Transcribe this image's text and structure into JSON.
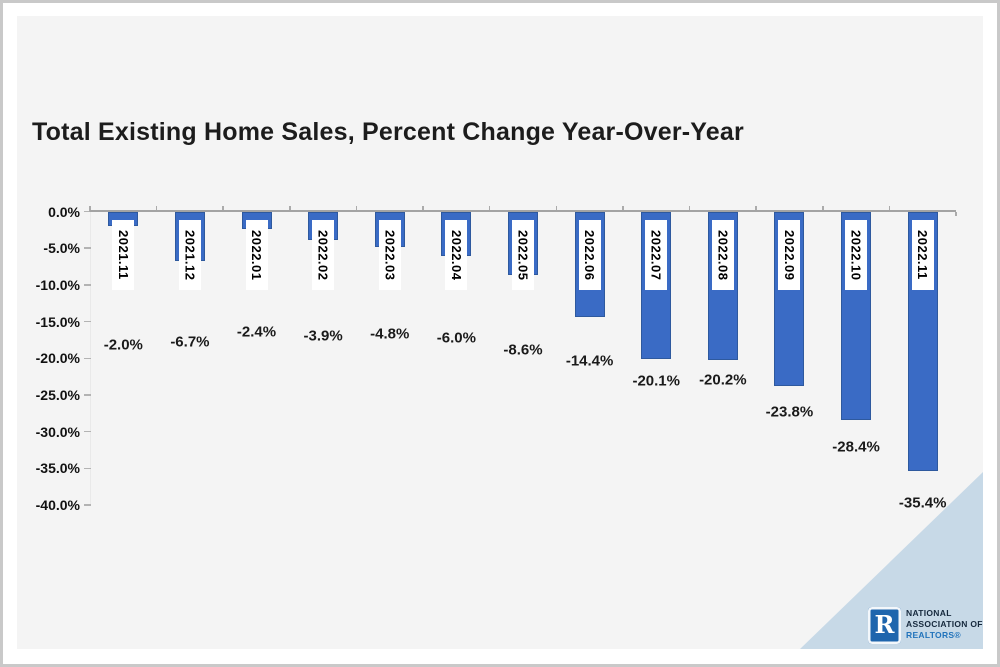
{
  "title": "Total Existing Home Sales, Percent Change Year-Over-Year",
  "chart_data": {
    "type": "bar",
    "title": "Total Existing Home Sales, Percent Change Year-Over-Year",
    "categories": [
      "2021.11",
      "2021.12",
      "2022.01",
      "2022.02",
      "2022.03",
      "2022.04",
      "2022.05",
      "2022.06",
      "2022.07",
      "2022.08",
      "2022.09",
      "2022.10",
      "2022.11"
    ],
    "values": [
      -2.0,
      -6.7,
      -2.4,
      -3.9,
      -4.8,
      -6.0,
      -8.6,
      -14.4,
      -20.1,
      -20.2,
      -23.8,
      -28.4,
      -35.4
    ],
    "value_labels": [
      "-2.0%",
      "-6.7%",
      "-2.4%",
      "-3.9%",
      "-4.8%",
      "-6.0%",
      "-8.6%",
      "-14.4%",
      "-20.1%",
      "-20.2%",
      "-23.8%",
      "-28.4%",
      "-35.4%"
    ],
    "unit": "%",
    "ylim": [
      -40,
      0
    ],
    "y_tick_labels": [
      "0.0%",
      "-5.0%",
      "-10.0%",
      "-15.0%",
      "-20.0%",
      "-25.0%",
      "-30.0%",
      "-35.0%",
      "-40.0%"
    ],
    "grid": false,
    "legend": null,
    "bar_color": "#3A6BC5",
    "bar_border_color": "#2E599E",
    "category_label_style": "vertical-white-box-on-bar"
  },
  "branding": {
    "logo_letter": "R",
    "line1": "NATIONAL",
    "line2": "ASSOCIATION OF",
    "line3": "REALTORS®",
    "logo_color": "#1E65AD",
    "text_color": "#16293D",
    "realtors_color": "#2173BB",
    "corner_triangle_color": "#C7D9E7"
  },
  "colors": {
    "slide_bg": "#f4f4f4",
    "frame_border": "#c9c9c9",
    "axis": "#a3a3a3",
    "label_text": "#1a1a1a"
  }
}
